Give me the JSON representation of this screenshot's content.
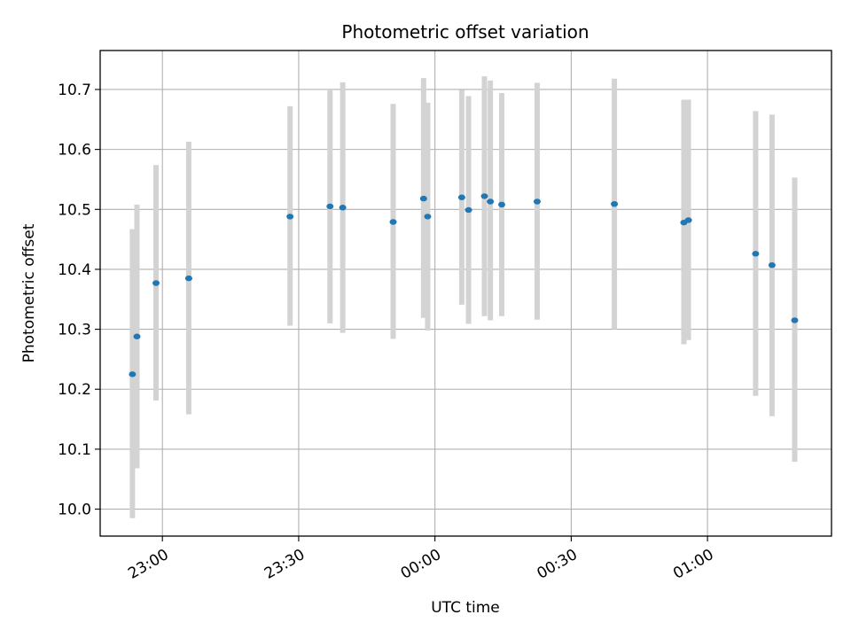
{
  "chart_data": {
    "type": "scatter",
    "title": "Photometric offset variation",
    "xlabel": "UTC time",
    "ylabel": "Photometric offset",
    "x_ticks": [
      "23:00",
      "23:30",
      "00:00",
      "00:30",
      "01:00"
    ],
    "x_tick_minutes": [
      0,
      30,
      60,
      90,
      120
    ],
    "y_ticks": [
      "10.0",
      "10.1",
      "10.2",
      "10.3",
      "10.4",
      "10.5",
      "10.6",
      "10.7"
    ],
    "y_tick_values": [
      10.0,
      10.1,
      10.2,
      10.3,
      10.4,
      10.5,
      10.6,
      10.7
    ],
    "xlim": [
      -13.7,
      147.3
    ],
    "ylim": [
      9.955,
      10.765
    ],
    "grid": true,
    "marker_color": "#1f77b4",
    "errorbar_color": "#d3d3d3",
    "points": [
      {
        "t": -6.6,
        "y": 10.225,
        "lo": 9.985,
        "hi": 10.467
      },
      {
        "t": -5.6,
        "y": 10.288,
        "lo": 10.068,
        "hi": 10.508
      },
      {
        "t": -1.4,
        "y": 10.377,
        "lo": 10.181,
        "hi": 10.574
      },
      {
        "t": 5.8,
        "y": 10.385,
        "lo": 10.158,
        "hi": 10.613
      },
      {
        "t": 28.1,
        "y": 10.488,
        "lo": 10.306,
        "hi": 10.672
      },
      {
        "t": 36.9,
        "y": 10.505,
        "lo": 10.31,
        "hi": 10.7
      },
      {
        "t": 39.7,
        "y": 10.503,
        "lo": 10.294,
        "hi": 10.712
      },
      {
        "t": 50.8,
        "y": 10.479,
        "lo": 10.284,
        "hi": 10.676
      },
      {
        "t": 57.5,
        "y": 10.518,
        "lo": 10.319,
        "hi": 10.719
      },
      {
        "t": 58.4,
        "y": 10.488,
        "lo": 10.298,
        "hi": 10.678
      },
      {
        "t": 65.9,
        "y": 10.52,
        "lo": 10.341,
        "hi": 10.699
      },
      {
        "t": 67.4,
        "y": 10.499,
        "lo": 10.309,
        "hi": 10.689
      },
      {
        "t": 70.9,
        "y": 10.522,
        "lo": 10.322,
        "hi": 10.722
      },
      {
        "t": 72.2,
        "y": 10.513,
        "lo": 10.315,
        "hi": 10.715
      },
      {
        "t": 74.7,
        "y": 10.508,
        "lo": 10.322,
        "hi": 10.694
      },
      {
        "t": 82.5,
        "y": 10.513,
        "lo": 10.316,
        "hi": 10.711
      },
      {
        "t": 99.5,
        "y": 10.509,
        "lo": 10.3,
        "hi": 10.718
      },
      {
        "t": 114.8,
        "y": 10.478,
        "lo": 10.275,
        "hi": 10.683
      },
      {
        "t": 115.8,
        "y": 10.482,
        "lo": 10.282,
        "hi": 10.683
      },
      {
        "t": 130.6,
        "y": 10.426,
        "lo": 10.189,
        "hi": 10.664
      },
      {
        "t": 134.2,
        "y": 10.407,
        "lo": 10.155,
        "hi": 10.658
      },
      {
        "t": 139.2,
        "y": 10.315,
        "lo": 10.079,
        "hi": 10.553
      }
    ]
  }
}
